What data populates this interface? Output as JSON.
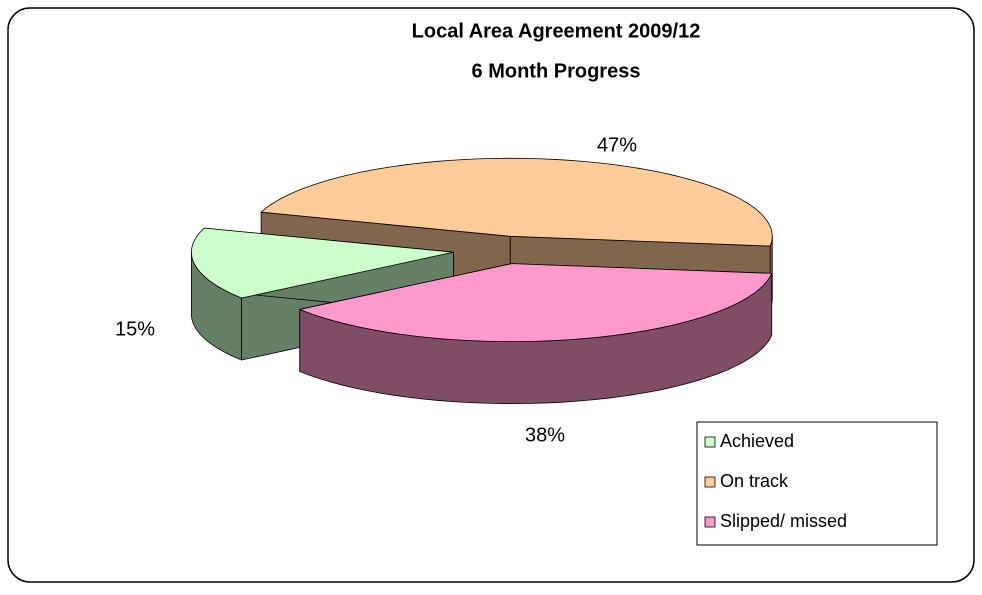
{
  "chart_data": {
    "type": "pie3d",
    "title": [
      "Local Area Agreement 2009/12",
      "6 Month Progress"
    ],
    "categories": [
      "Achieved",
      "On track",
      "Slipped/ missed"
    ],
    "values": [
      15,
      47,
      38
    ],
    "value_labels": [
      "15%",
      "47%",
      "38%"
    ],
    "colors": [
      "#ccffcc",
      "#ffcc99",
      "#ff99cc"
    ],
    "legend": "bottom-right"
  }
}
